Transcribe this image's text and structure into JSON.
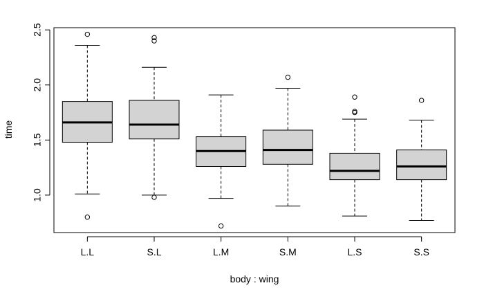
{
  "chart_data": {
    "type": "boxplot",
    "title": "",
    "xlabel": "body : wing",
    "ylabel": "time",
    "ylim": [
      0.66,
      2.52
    ],
    "yticks": [
      1.0,
      1.5,
      2.0,
      2.5
    ],
    "ytick_labels": [
      "1.0",
      "1.5",
      "2.0",
      "2.5"
    ],
    "categories": [
      "L.L",
      "S.L",
      "L.M",
      "S.M",
      "L.S",
      "S.S"
    ],
    "box_fill": "#d3d3d3",
    "boxes": [
      {
        "category": "L.L",
        "whisker_low": 1.01,
        "q1": 1.48,
        "median": 1.66,
        "q3": 1.85,
        "whisker_high": 2.36,
        "outliers": [
          2.46,
          0.8
        ]
      },
      {
        "category": "S.L",
        "whisker_low": 1.0,
        "q1": 1.51,
        "median": 1.64,
        "q3": 1.86,
        "whisker_high": 2.16,
        "outliers": [
          2.43,
          2.4,
          0.98
        ]
      },
      {
        "category": "L.M",
        "whisker_low": 0.97,
        "q1": 1.26,
        "median": 1.4,
        "q3": 1.53,
        "whisker_high": 1.91,
        "outliers": [
          0.72
        ]
      },
      {
        "category": "S.M",
        "whisker_low": 0.9,
        "q1": 1.28,
        "median": 1.41,
        "q3": 1.59,
        "whisker_high": 1.97,
        "outliers": [
          2.07
        ]
      },
      {
        "category": "L.S",
        "whisker_low": 0.81,
        "q1": 1.14,
        "median": 1.22,
        "q3": 1.38,
        "whisker_high": 1.69,
        "outliers": [
          1.89,
          1.76,
          1.75
        ]
      },
      {
        "category": "S.S",
        "whisker_low": 0.77,
        "q1": 1.14,
        "median": 1.26,
        "q3": 1.41,
        "whisker_high": 1.68,
        "outliers": [
          1.86
        ]
      }
    ]
  }
}
